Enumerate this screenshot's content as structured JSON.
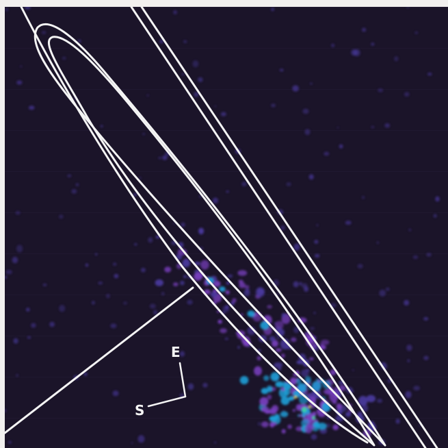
{
  "image": {
    "kind": "false-color astronomical image with overlaid outlines",
    "palette": {
      "background": "#1b1429",
      "border": "#f2f0ef",
      "outline": "#f4f4f4",
      "low": "#4a3aa0",
      "mid": "#7a40c0",
      "high": "#1ea0d8",
      "peak": "#3fd3a0",
      "hot": "#e6e030"
    }
  },
  "compass": {
    "east": "E",
    "south": "S"
  }
}
